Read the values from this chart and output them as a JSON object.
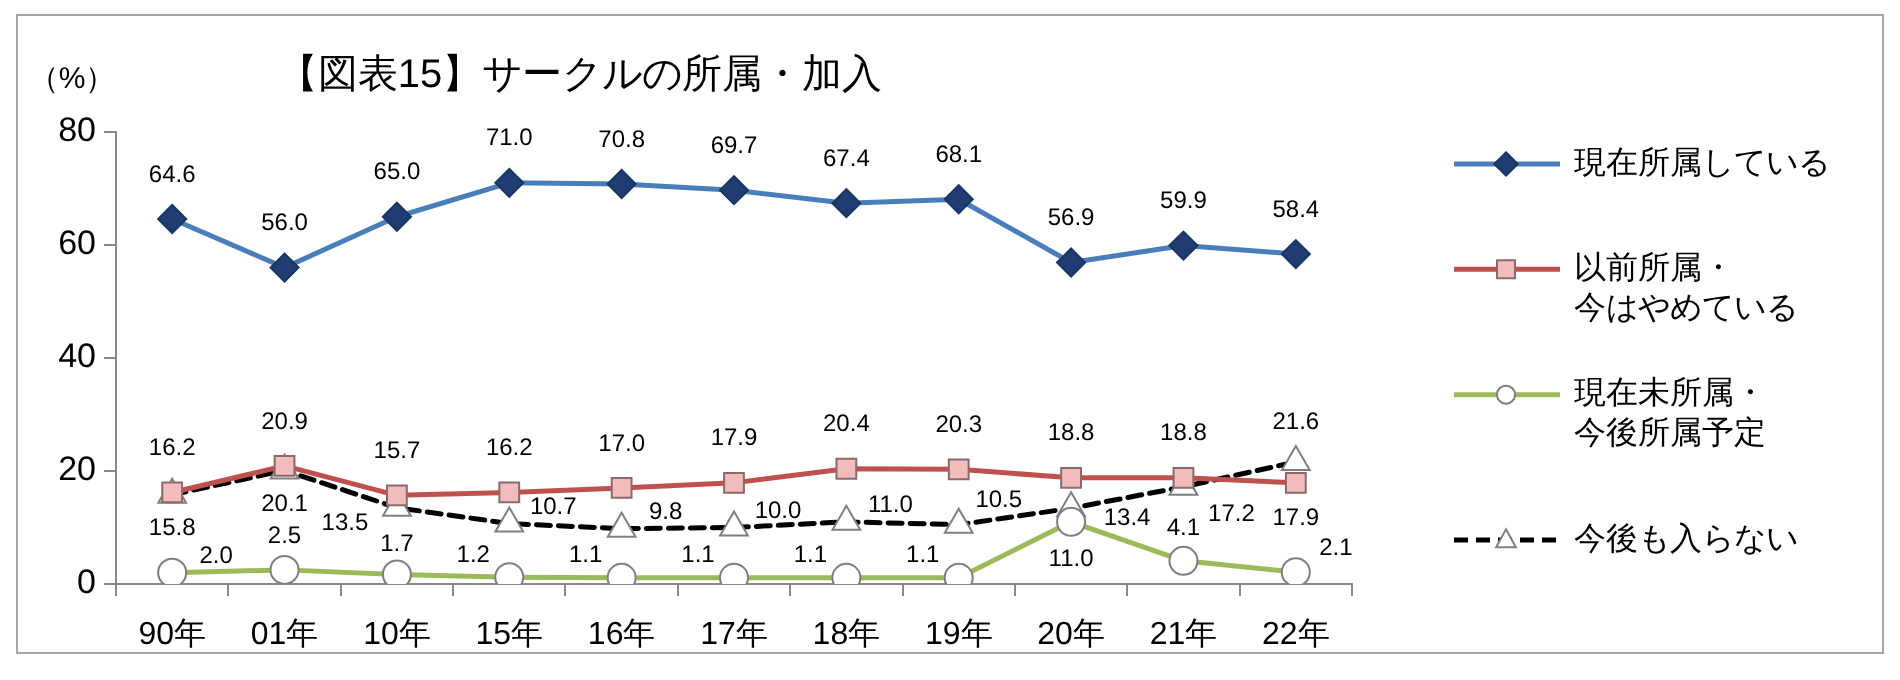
{
  "chart_data": {
    "type": "line",
    "title": "【図表15】サークルの所属・加入",
    "ylabel": "（%）",
    "categories": [
      "90年",
      "01年",
      "10年",
      "15年",
      "16年",
      "17年",
      "18年",
      "19年",
      "20年",
      "21年",
      "22年"
    ],
    "series": [
      {
        "name": "現在所属している",
        "color": "#4a7ebb",
        "marker": "diamond",
        "values": [
          64.6,
          56.0,
          65.0,
          71.0,
          70.8,
          69.7,
          67.4,
          68.1,
          56.9,
          59.9,
          58.4
        ],
        "value_labels": [
          "64.6",
          "56.0",
          "65.0",
          "71.0",
          "70.8",
          "69.7",
          "67.4",
          "68.1",
          "56.9",
          "59.9",
          "58.4"
        ]
      },
      {
        "name": "以前所属・今はやめている",
        "color": "#c0504d",
        "marker": "square",
        "values": [
          16.2,
          20.9,
          15.7,
          16.2,
          17.0,
          17.9,
          20.4,
          20.3,
          18.8,
          18.8,
          17.9
        ],
        "value_labels": [
          "16.2",
          "20.9",
          "15.7",
          "16.2",
          "17.0",
          "17.9",
          "20.4",
          "20.3",
          "18.8",
          "18.8",
          "17.9"
        ]
      },
      {
        "name": "現在未所属・今後所属予定",
        "color": "#9bbb59",
        "marker": "circle",
        "values": [
          2.0,
          2.5,
          1.7,
          1.2,
          1.1,
          1.1,
          1.1,
          1.1,
          11.0,
          4.1,
          2.1
        ],
        "value_labels": [
          "2.0",
          "2.5",
          "1.7",
          "1.2",
          "1.1",
          "1.1",
          "1.1",
          "1.1",
          "11.0",
          "4.1",
          "2.1"
        ]
      },
      {
        "name": "今後も入らない",
        "color": "#000000",
        "marker": "triangle",
        "line_style": "dashed",
        "values": [
          15.8,
          20.1,
          13.5,
          10.7,
          9.8,
          10.0,
          11.0,
          10.5,
          13.4,
          17.2,
          21.6
        ],
        "value_labels": [
          "15.8",
          "20.1",
          "13.5",
          "10.7",
          "9.8",
          "10.0",
          "11.0",
          "10.5",
          "13.4",
          "17.2",
          "21.6"
        ]
      }
    ],
    "ylim": [
      0,
      80
    ],
    "yticks": [
      0,
      20,
      40,
      60,
      80
    ],
    "legend": "right"
  }
}
